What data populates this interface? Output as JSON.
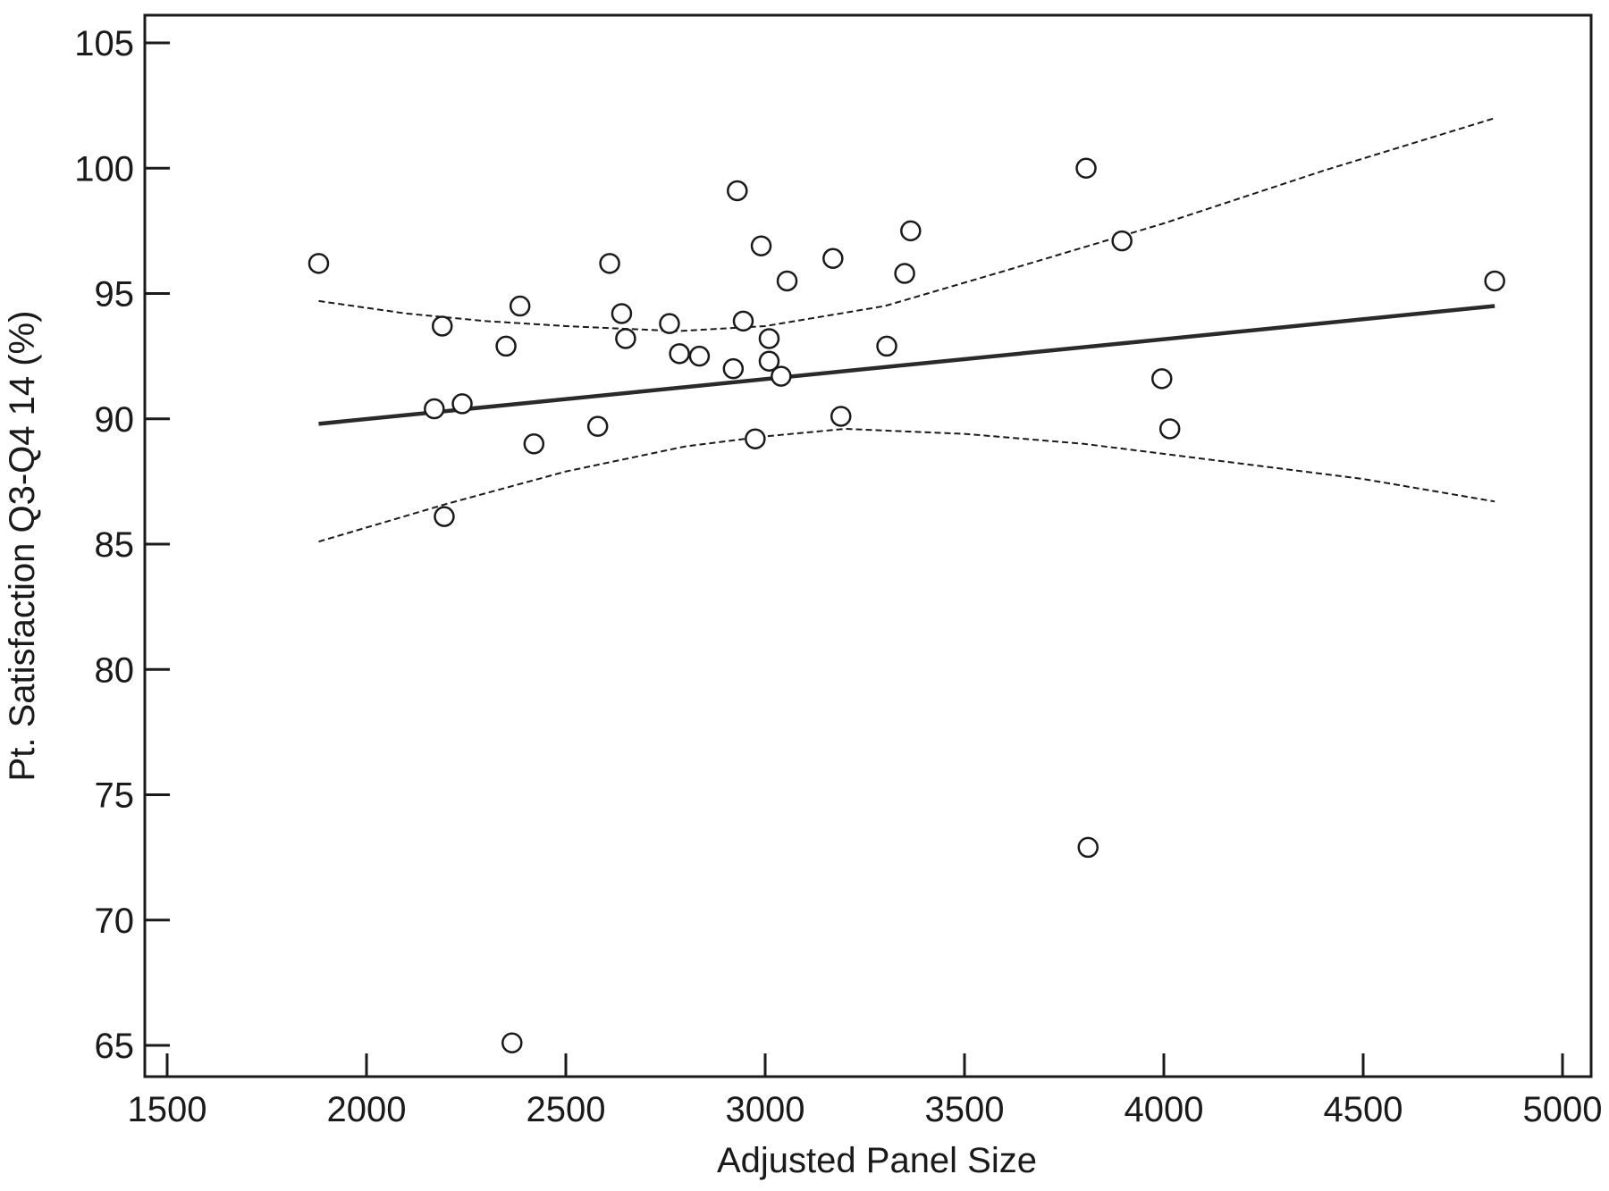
{
  "chart_data": {
    "type": "scatter",
    "title": "",
    "xlabel": "Adjusted Panel Size",
    "ylabel": "Pt. Satisfaction Q3-Q4 14 (%)",
    "xlim": [
      1500,
      5000
    ],
    "ylim": [
      63,
      106
    ],
    "x_ticks": [
      1500,
      2000,
      2500,
      3000,
      3500,
      4000,
      4500,
      5000
    ],
    "y_ticks": [
      65,
      70,
      75,
      80,
      85,
      90,
      95,
      100,
      105
    ],
    "grid": false,
    "legend": "none",
    "colors": {
      "points": "#1a1a1a",
      "fit_line": "#2a2a2a",
      "ci_lines": "#1a1a1a"
    },
    "points": [
      {
        "x": 1880,
        "y": 96.2
      },
      {
        "x": 2170,
        "y": 90.4
      },
      {
        "x": 2190,
        "y": 93.7
      },
      {
        "x": 2195,
        "y": 86.1
      },
      {
        "x": 2240,
        "y": 90.6
      },
      {
        "x": 2350,
        "y": 92.9
      },
      {
        "x": 2365,
        "y": 65.1
      },
      {
        "x": 2385,
        "y": 94.5
      },
      {
        "x": 2420,
        "y": 89.0
      },
      {
        "x": 2580,
        "y": 89.7
      },
      {
        "x": 2610,
        "y": 96.2
      },
      {
        "x": 2640,
        "y": 94.2
      },
      {
        "x": 2650,
        "y": 93.2
      },
      {
        "x": 2760,
        "y": 93.8
      },
      {
        "x": 2785,
        "y": 92.6
      },
      {
        "x": 2835,
        "y": 92.5
      },
      {
        "x": 2920,
        "y": 92.0
      },
      {
        "x": 2930,
        "y": 99.1
      },
      {
        "x": 2945,
        "y": 93.9
      },
      {
        "x": 2975,
        "y": 89.2
      },
      {
        "x": 2990,
        "y": 96.9
      },
      {
        "x": 3010,
        "y": 93.2
      },
      {
        "x": 3010,
        "y": 92.3
      },
      {
        "x": 3040,
        "y": 91.7
      },
      {
        "x": 3055,
        "y": 95.5
      },
      {
        "x": 3170,
        "y": 96.4
      },
      {
        "x": 3190,
        "y": 90.1
      },
      {
        "x": 3305,
        "y": 92.9
      },
      {
        "x": 3350,
        "y": 95.8
      },
      {
        "x": 3365,
        "y": 97.5
      },
      {
        "x": 3805,
        "y": 100.0
      },
      {
        "x": 3810,
        "y": 72.9
      },
      {
        "x": 3895,
        "y": 97.1
      },
      {
        "x": 3995,
        "y": 91.6
      },
      {
        "x": 4015,
        "y": 89.6
      },
      {
        "x": 4830,
        "y": 95.5
      }
    ],
    "fit_line": [
      {
        "x": 1880,
        "y": 89.8
      },
      {
        "x": 4830,
        "y": 94.5
      }
    ],
    "ci_upper": [
      {
        "x": 1880,
        "y": 94.7
      },
      {
        "x": 2100,
        "y": 94.2
      },
      {
        "x": 2300,
        "y": 93.9
      },
      {
        "x": 2500,
        "y": 93.7
      },
      {
        "x": 2780,
        "y": 93.5
      },
      {
        "x": 3000,
        "y": 93.7
      },
      {
        "x": 3300,
        "y": 94.5
      },
      {
        "x": 3600,
        "y": 95.9
      },
      {
        "x": 4000,
        "y": 97.8
      },
      {
        "x": 4400,
        "y": 99.9
      },
      {
        "x": 4830,
        "y": 102.0
      }
    ],
    "ci_lower": [
      {
        "x": 1880,
        "y": 85.1
      },
      {
        "x": 2200,
        "y": 86.6
      },
      {
        "x": 2500,
        "y": 87.9
      },
      {
        "x": 2800,
        "y": 88.9
      },
      {
        "x": 3000,
        "y": 89.3
      },
      {
        "x": 3200,
        "y": 89.6
      },
      {
        "x": 3500,
        "y": 89.4
      },
      {
        "x": 3800,
        "y": 89.0
      },
      {
        "x": 4100,
        "y": 88.4
      },
      {
        "x": 4500,
        "y": 87.6
      },
      {
        "x": 4830,
        "y": 86.7
      }
    ]
  }
}
